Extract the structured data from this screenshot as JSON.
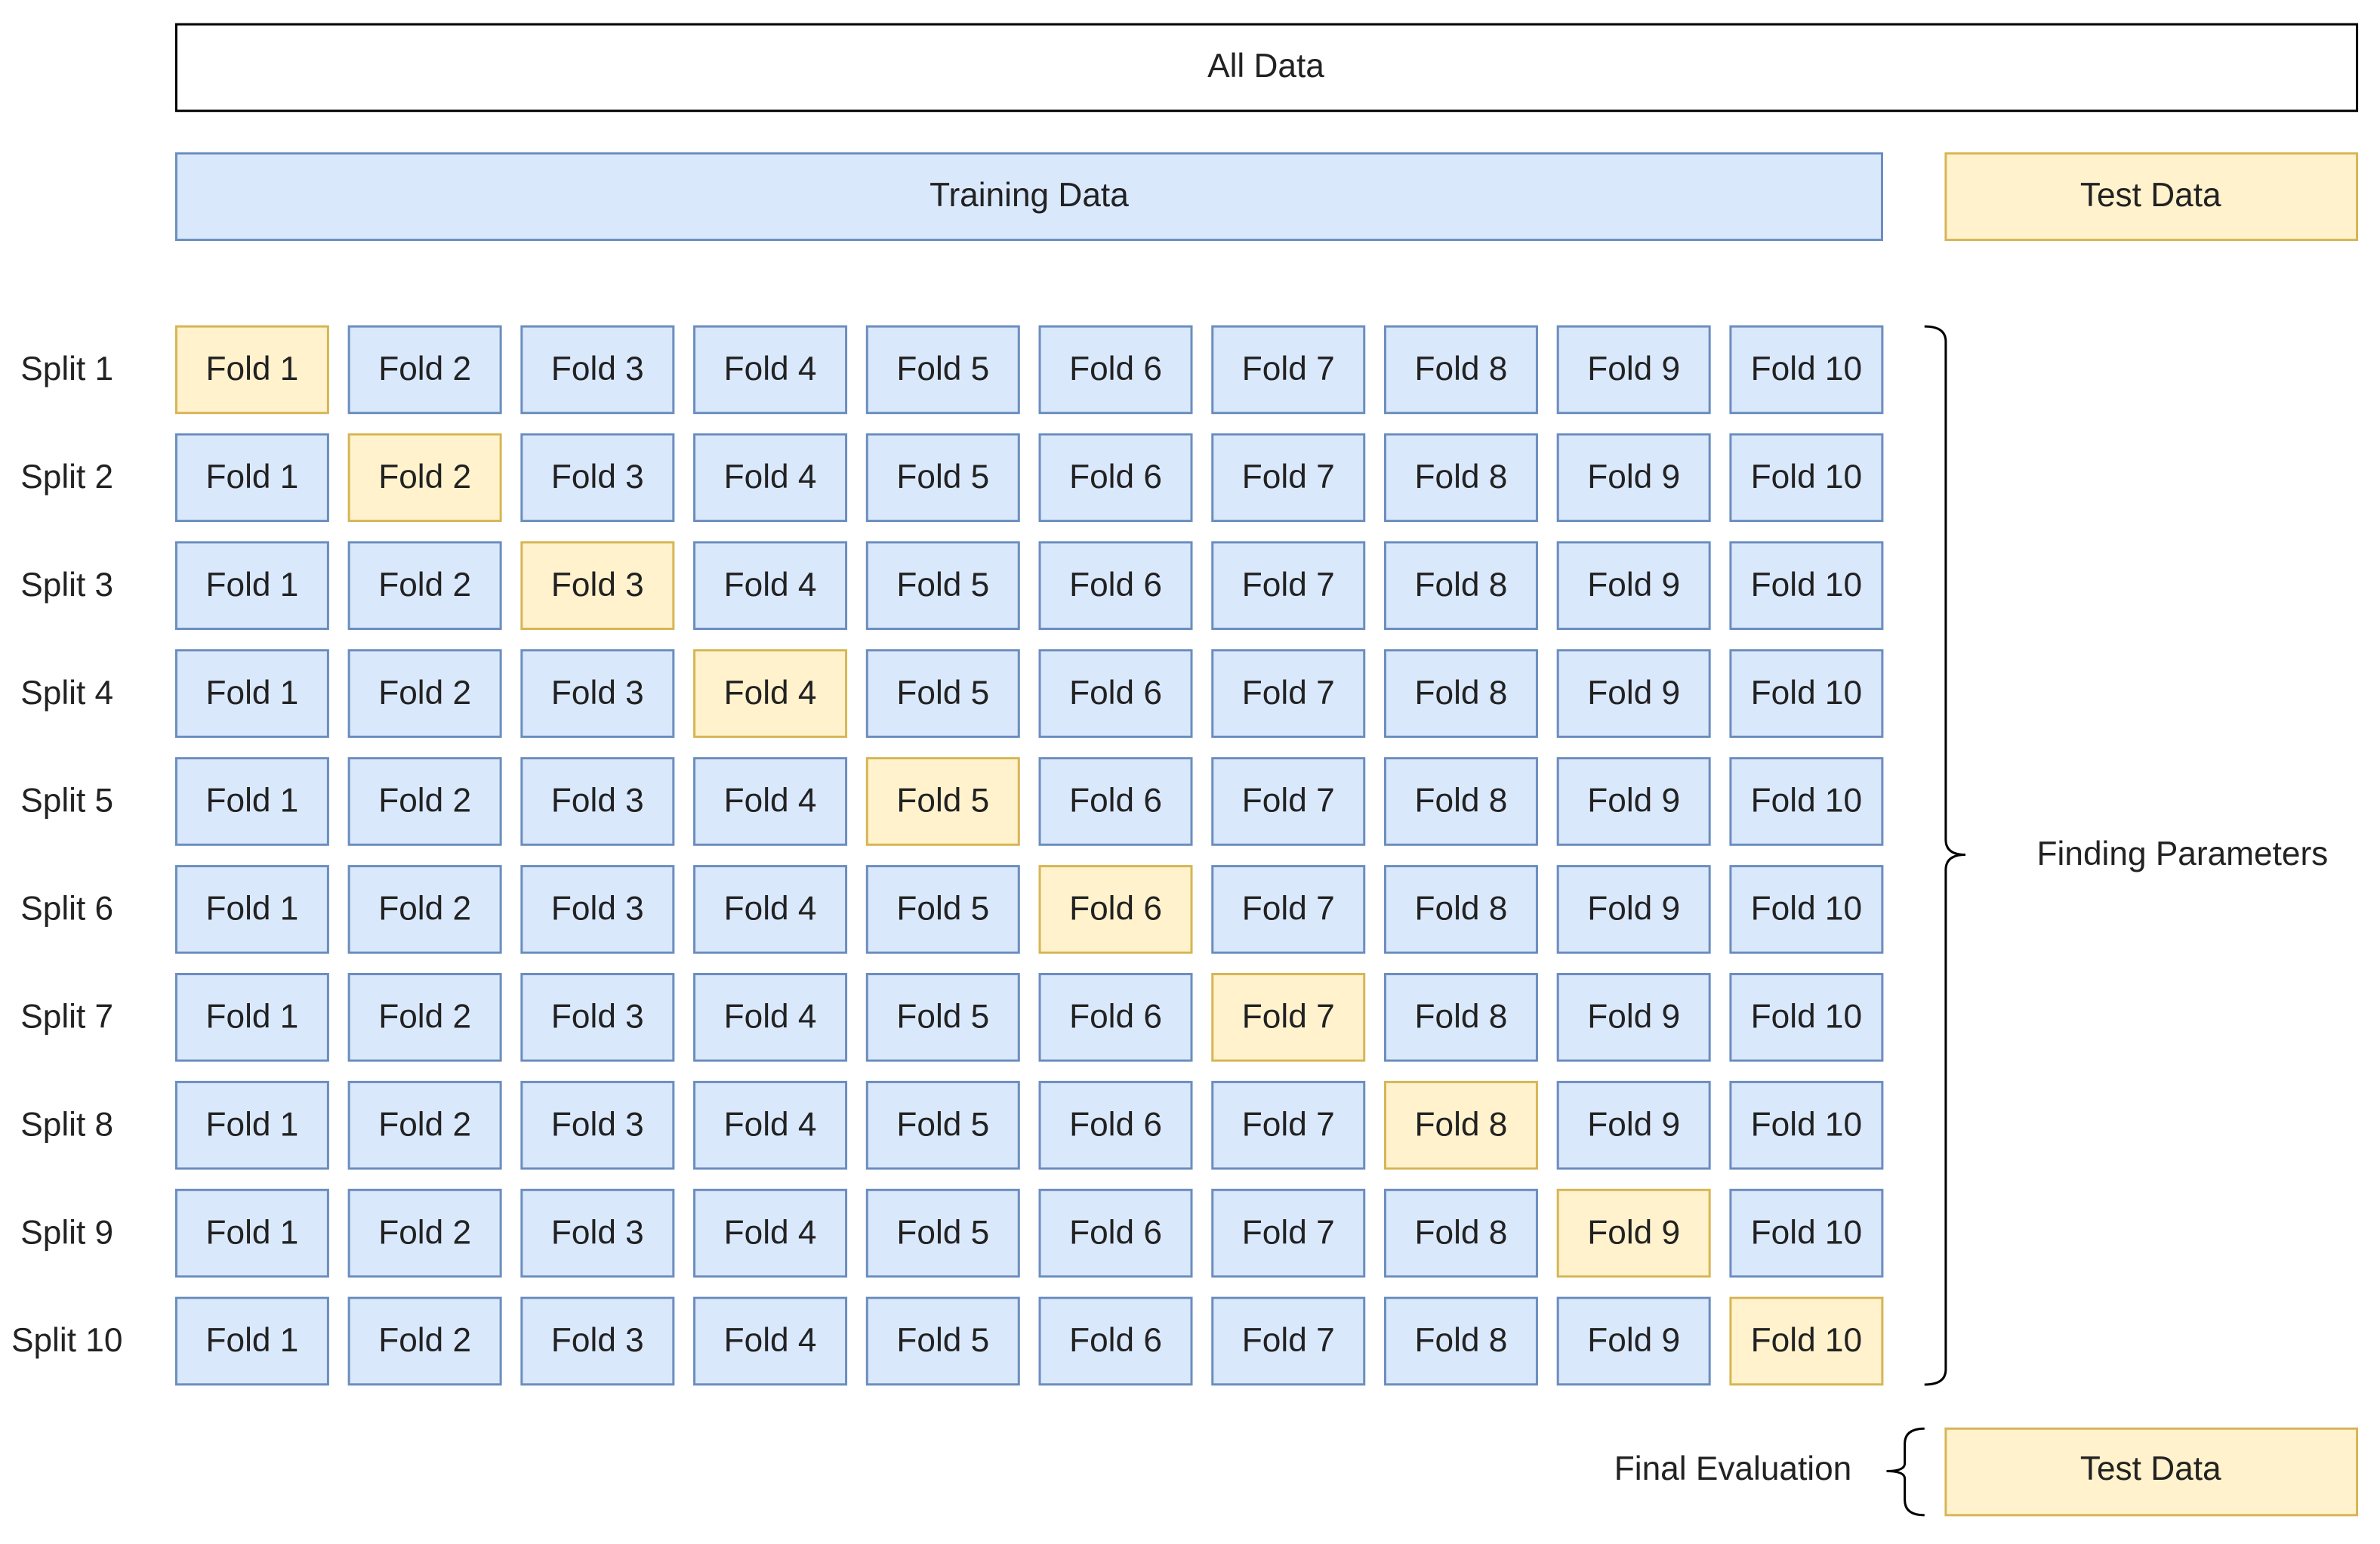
{
  "all_data": "All Data",
  "training_data": "Training Data",
  "test_data": "Test Data",
  "finding_parameters": "Finding Parameters",
  "final_evaluation": "Final Evaluation",
  "final_test_data": "Test Data",
  "splits": [
    {
      "label": "Split 1",
      "folds": [
        {
          "label": "Fold 1",
          "color": "#fff2cc"
        },
        {
          "label": "Fold 2",
          "color": "#dae8fc"
        },
        {
          "label": "Fold 3",
          "color": "#dae8fc"
        },
        {
          "label": "Fold 4",
          "color": "#dae8fc"
        },
        {
          "label": "Fold 5",
          "color": "#dae8fc"
        },
        {
          "label": "Fold 6",
          "color": "#dae8fc"
        },
        {
          "label": "Fold 7",
          "color": "#dae8fc"
        },
        {
          "label": "Fold 8",
          "color": "#dae8fc"
        },
        {
          "label": "Fold 9",
          "color": "#dae8fc"
        },
        {
          "label": "Fold 10",
          "color": "#dae8fc"
        }
      ]
    },
    {
      "label": "Split 2",
      "folds": [
        {
          "label": "Fold 1",
          "color": "#dae8fc"
        },
        {
          "label": "Fold 2",
          "color": "#fff2cc"
        },
        {
          "label": "Fold 3",
          "color": "#dae8fc"
        },
        {
          "label": "Fold 4",
          "color": "#dae8fc"
        },
        {
          "label": "Fold 5",
          "color": "#dae8fc"
        },
        {
          "label": "Fold 6",
          "color": "#dae8fc"
        },
        {
          "label": "Fold 7",
          "color": "#dae8fc"
        },
        {
          "label": "Fold 8",
          "color": "#dae8fc"
        },
        {
          "label": "Fold 9",
          "color": "#dae8fc"
        },
        {
          "label": "Fold 10",
          "color": "#dae8fc"
        }
      ]
    },
    {
      "label": "Split 3",
      "folds": [
        {
          "label": "Fold 1",
          "color": "#dae8fc"
        },
        {
          "label": "Fold 2",
          "color": "#dae8fc"
        },
        {
          "label": "Fold 3",
          "color": "#fff2cc"
        },
        {
          "label": "Fold 4",
          "color": "#dae8fc"
        },
        {
          "label": "Fold 5",
          "color": "#dae8fc"
        },
        {
          "label": "Fold 6",
          "color": "#dae8fc"
        },
        {
          "label": "Fold 7",
          "color": "#dae8fc"
        },
        {
          "label": "Fold 8",
          "color": "#dae8fc"
        },
        {
          "label": "Fold 9",
          "color": "#dae8fc"
        },
        {
          "label": "Fold 10",
          "color": "#dae8fc"
        }
      ]
    },
    {
      "label": "Split 4",
      "folds": [
        {
          "label": "Fold 1",
          "color": "#dae8fc"
        },
        {
          "label": "Fold 2",
          "color": "#dae8fc"
        },
        {
          "label": "Fold 3",
          "color": "#dae8fc"
        },
        {
          "label": "Fold 4",
          "color": "#fff2cc"
        },
        {
          "label": "Fold 5",
          "color": "#dae8fc"
        },
        {
          "label": "Fold 6",
          "color": "#dae8fc"
        },
        {
          "label": "Fold 7",
          "color": "#dae8fc"
        },
        {
          "label": "Fold 8",
          "color": "#dae8fc"
        },
        {
          "label": "Fold 9",
          "color": "#dae8fc"
        },
        {
          "label": "Fold 10",
          "color": "#dae8fc"
        }
      ]
    },
    {
      "label": "Split 5",
      "folds": [
        {
          "label": "Fold 1",
          "color": "#dae8fc"
        },
        {
          "label": "Fold 2",
          "color": "#dae8fc"
        },
        {
          "label": "Fold 3",
          "color": "#dae8fc"
        },
        {
          "label": "Fold 4",
          "color": "#dae8fc"
        },
        {
          "label": "Fold 5",
          "color": "#fff2cc"
        },
        {
          "label": "Fold 6",
          "color": "#dae8fc"
        },
        {
          "label": "Fold 7",
          "color": "#dae8fc"
        },
        {
          "label": "Fold 8",
          "color": "#dae8fc"
        },
        {
          "label": "Fold 9",
          "color": "#dae8fc"
        },
        {
          "label": "Fold 10",
          "color": "#dae8fc"
        }
      ]
    },
    {
      "label": "Split 6",
      "folds": [
        {
          "label": "Fold 1",
          "color": "#dae8fc"
        },
        {
          "label": "Fold 2",
          "color": "#dae8fc"
        },
        {
          "label": "Fold 3",
          "color": "#dae8fc"
        },
        {
          "label": "Fold 4",
          "color": "#dae8fc"
        },
        {
          "label": "Fold 5",
          "color": "#dae8fc"
        },
        {
          "label": "Fold 6",
          "color": "#fff2cc"
        },
        {
          "label": "Fold 7",
          "color": "#dae8fc"
        },
        {
          "label": "Fold 8",
          "color": "#dae8fc"
        },
        {
          "label": "Fold 9",
          "color": "#dae8fc"
        },
        {
          "label": "Fold 10",
          "color": "#dae8fc"
        }
      ]
    },
    {
      "label": "Split 7",
      "folds": [
        {
          "label": "Fold 1",
          "color": "#dae8fc"
        },
        {
          "label": "Fold 2",
          "color": "#dae8fc"
        },
        {
          "label": "Fold 3",
          "color": "#dae8fc"
        },
        {
          "label": "Fold 4",
          "color": "#dae8fc"
        },
        {
          "label": "Fold 5",
          "color": "#dae8fc"
        },
        {
          "label": "Fold 6",
          "color": "#dae8fc"
        },
        {
          "label": "Fold 7",
          "color": "#fff2cc"
        },
        {
          "label": "Fold 8",
          "color": "#dae8fc"
        },
        {
          "label": "Fold 9",
          "color": "#dae8fc"
        },
        {
          "label": "Fold 10",
          "color": "#dae8fc"
        }
      ]
    },
    {
      "label": "Split 8",
      "folds": [
        {
          "label": "Fold 1",
          "color": "#dae8fc"
        },
        {
          "label": "Fold 2",
          "color": "#dae8fc"
        },
        {
          "label": "Fold 3",
          "color": "#dae8fc"
        },
        {
          "label": "Fold 4",
          "color": "#dae8fc"
        },
        {
          "label": "Fold 5",
          "color": "#dae8fc"
        },
        {
          "label": "Fold 6",
          "color": "#dae8fc"
        },
        {
          "label": "Fold 7",
          "color": "#dae8fc"
        },
        {
          "label": "Fold 8",
          "color": "#fff2cc"
        },
        {
          "label": "Fold 9",
          "color": "#dae8fc"
        },
        {
          "label": "Fold 10",
          "color": "#dae8fc"
        }
      ]
    },
    {
      "label": "Split 9",
      "folds": [
        {
          "label": "Fold 1",
          "color": "#dae8fc"
        },
        {
          "label": "Fold 2",
          "color": "#dae8fc"
        },
        {
          "label": "Fold 3",
          "color": "#dae8fc"
        },
        {
          "label": "Fold 4",
          "color": "#dae8fc"
        },
        {
          "label": "Fold 5",
          "color": "#dae8fc"
        },
        {
          "label": "Fold 6",
          "color": "#dae8fc"
        },
        {
          "label": "Fold 7",
          "color": "#dae8fc"
        },
        {
          "label": "Fold 8",
          "color": "#dae8fc"
        },
        {
          "label": "Fold 9",
          "color": "#fff2cc"
        },
        {
          "label": "Fold 10",
          "color": "#dae8fc"
        }
      ]
    },
    {
      "label": "Split 10",
      "folds": [
        {
          "label": "Fold 1",
          "color": "#dae8fc"
        },
        {
          "label": "Fold 2",
          "color": "#dae8fc"
        },
        {
          "label": "Fold 3",
          "color": "#dae8fc"
        },
        {
          "label": "Fold 4",
          "color": "#dae8fc"
        },
        {
          "label": "Fold 5",
          "color": "#dae8fc"
        },
        {
          "label": "Fold 6",
          "color": "#dae8fc"
        },
        {
          "label": "Fold 7",
          "color": "#dae8fc"
        },
        {
          "label": "Fold 8",
          "color": "#dae8fc"
        },
        {
          "label": "Fold 9",
          "color": "#dae8fc"
        },
        {
          "label": "Fold 10",
          "color": "#fff2cc"
        }
      ]
    }
  ]
}
